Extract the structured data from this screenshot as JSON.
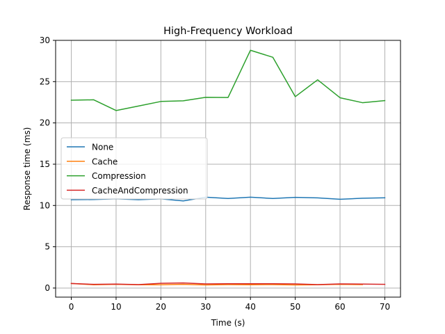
{
  "chart_data": {
    "type": "line",
    "title": "High-Frequency Workload",
    "xlabel": "Time (s)",
    "ylabel": "Response time (ms)",
    "xlim": [
      -3.5,
      73.5
    ],
    "ylim": [
      -1.1,
      30
    ],
    "xticks": [
      0,
      10,
      20,
      30,
      40,
      50,
      60,
      70
    ],
    "yticks": [
      0,
      5,
      10,
      15,
      20,
      25,
      30
    ],
    "grid": true,
    "legend_position": "center-left",
    "series": [
      {
        "name": "None",
        "color": "#1f77b4",
        "x": [
          0,
          5,
          10,
          15,
          20,
          25,
          30,
          35,
          40,
          45,
          50,
          55,
          60,
          65,
          70
        ],
        "y": [
          10.7,
          10.72,
          10.8,
          10.7,
          10.8,
          10.55,
          11.0,
          10.85,
          11.0,
          10.85,
          10.98,
          10.92,
          10.75,
          10.88,
          10.93
        ]
      },
      {
        "name": "Cache",
        "color": "#ff7f0e",
        "x": [
          0,
          5,
          10,
          15,
          20,
          25,
          30,
          35,
          40,
          45,
          50,
          55,
          60,
          65
        ],
        "y": [
          0.55,
          0.4,
          0.45,
          0.4,
          0.4,
          0.45,
          0.38,
          0.42,
          0.4,
          0.42,
          0.38,
          0.4,
          0.45,
          0.42
        ]
      },
      {
        "name": "Compression",
        "color": "#2ca02c",
        "x": [
          0,
          5,
          10,
          15,
          20,
          25,
          30,
          35,
          40,
          45,
          50,
          55,
          60,
          65,
          70
        ],
        "y": [
          22.75,
          22.8,
          21.5,
          22.05,
          22.6,
          22.68,
          23.1,
          23.08,
          28.8,
          27.95,
          23.18,
          25.22,
          23.05,
          22.45,
          22.7
        ]
      },
      {
        "name": "CacheAndCompression",
        "color": "#d62728",
        "x": [
          0,
          5,
          10,
          15,
          20,
          25,
          30,
          35,
          40,
          45,
          50,
          55,
          60,
          65,
          70
        ],
        "y": [
          0.55,
          0.45,
          0.48,
          0.42,
          0.58,
          0.62,
          0.5,
          0.52,
          0.52,
          0.52,
          0.5,
          0.42,
          0.5,
          0.48,
          0.45
        ]
      }
    ]
  }
}
